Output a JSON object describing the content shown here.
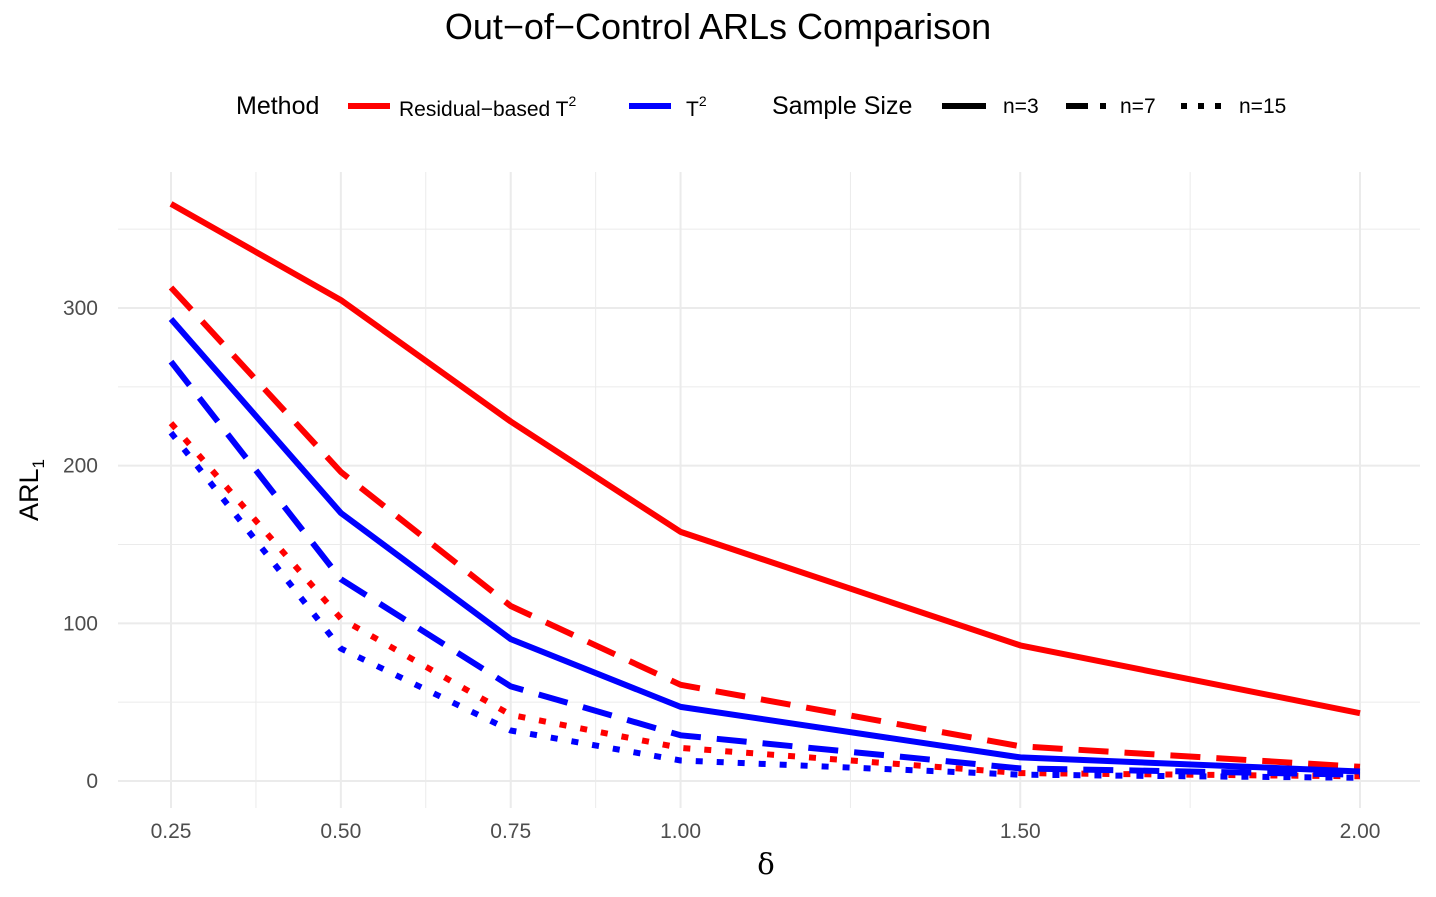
{
  "chart_data": {
    "type": "line",
    "title": "Out−of−Control ARLs Comparison",
    "xlabel": "δ",
    "ylabel": "ARL",
    "ylabel_subscript": "1",
    "x": [
      0.25,
      0.5,
      0.75,
      1.0,
      1.5,
      2.0
    ],
    "x_tick_labels": [
      "0.25",
      "0.50",
      "0.75",
      "1.00",
      "1.50",
      "2.00"
    ],
    "y_ticks": [
      0,
      100,
      200,
      300
    ],
    "y_tick_labels": [
      "0",
      "100",
      "200",
      "300"
    ],
    "xlim": [
      0.25,
      2.0
    ],
    "ylim": [
      0,
      366
    ],
    "grid": true,
    "legend_placement": "top",
    "legend": {
      "method_title": "Method",
      "method_entries": [
        {
          "label": "Residual−based T",
          "sup": "2",
          "color": "#ff0000"
        },
        {
          "label": "T",
          "sup": "2",
          "color": "#0000ff"
        }
      ],
      "size_title": "Sample Size",
      "size_entries": [
        {
          "label": "n=3",
          "linetype": "solid"
        },
        {
          "label": "n=7",
          "linetype": "dashed"
        },
        {
          "label": "n=15",
          "linetype": "dotted"
        }
      ]
    },
    "series": [
      {
        "method": "Residual−based T²",
        "sample_size": "n=3",
        "color": "#ff0000",
        "linetype": "solid",
        "values": [
          366,
          305,
          228,
          158,
          86,
          43
        ]
      },
      {
        "method": "Residual−based T²",
        "sample_size": "n=7",
        "color": "#ff0000",
        "linetype": "dashed",
        "values": [
          313,
          196,
          111,
          61,
          22,
          9
        ]
      },
      {
        "method": "Residual−based T²",
        "sample_size": "n=15",
        "color": "#ff0000",
        "linetype": "dotted",
        "values": [
          227,
          103,
          42,
          21,
          5,
          3
        ]
      },
      {
        "method": "T²",
        "sample_size": "n=3",
        "color": "#0000ff",
        "linetype": "solid",
        "values": [
          293,
          170,
          90,
          47,
          15,
          6
        ]
      },
      {
        "method": "T²",
        "sample_size": "n=7",
        "color": "#0000ff",
        "linetype": "dashed",
        "values": [
          266,
          128,
          60,
          29,
          8,
          4
        ]
      },
      {
        "method": "T²",
        "sample_size": "n=15",
        "color": "#0000ff",
        "linetype": "dotted",
        "values": [
          221,
          84,
          32,
          13,
          4,
          2
        ]
      }
    ]
  }
}
